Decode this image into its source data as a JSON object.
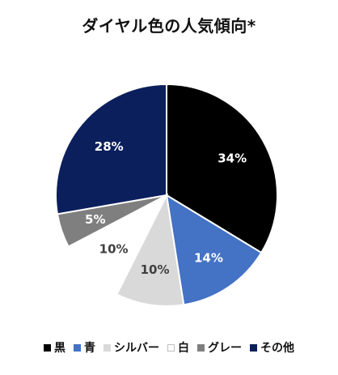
{
  "chart_data": {
    "type": "pie",
    "title": "ダイヤル色の人気傾向*",
    "categories": [
      "黒",
      "青",
      "シルバー",
      "白",
      "グレー",
      "その他"
    ],
    "values": [
      34,
      14,
      10,
      10,
      5,
      28
    ],
    "labels": [
      "34%",
      "14%",
      "10%",
      "10%",
      "5%",
      "28%"
    ],
    "colors": [
      "#000000",
      "#4472c4",
      "#d9d9d9",
      "#ffffff",
      "#7f7f7f",
      "#0b1f5c"
    ],
    "label_colors": [
      "#ffffff",
      "#ffffff",
      "#404040",
      "#404040",
      "#ffffff",
      "#ffffff"
    ],
    "legend_position": "bottom",
    "start": "12 o'clock, clockwise"
  }
}
